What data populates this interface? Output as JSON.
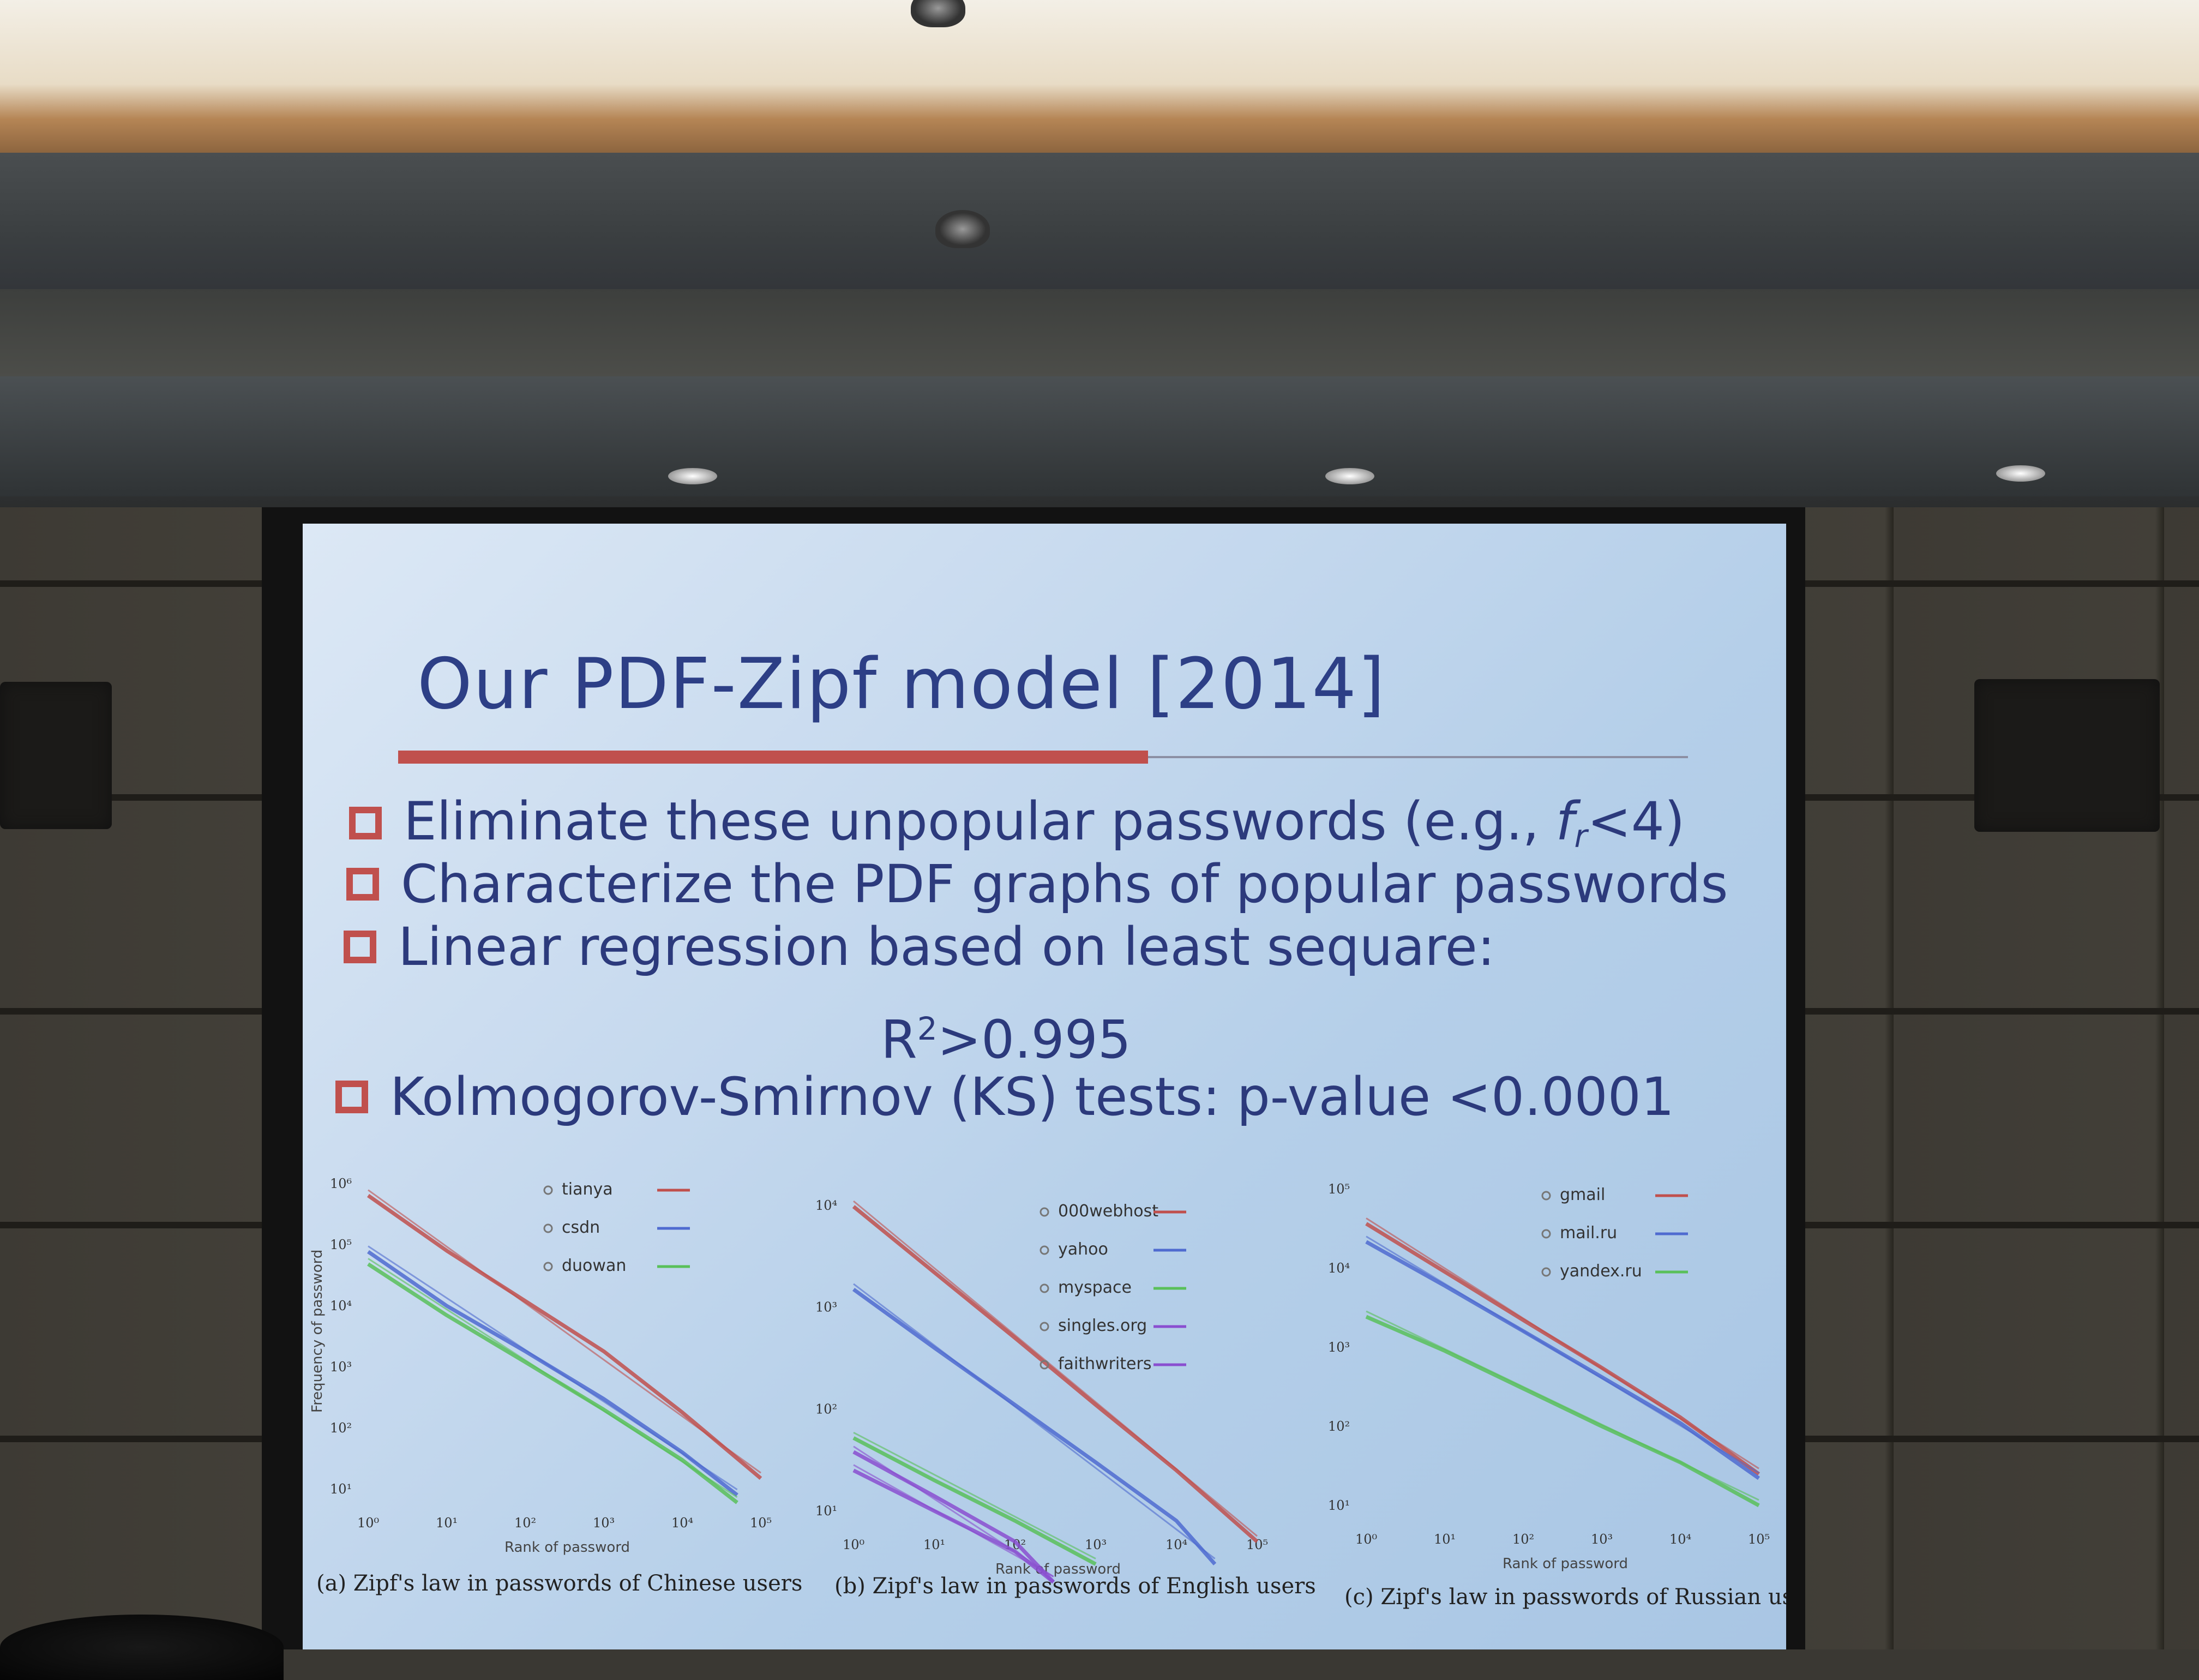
{
  "slide": {
    "title": "Our PDF-Zipf model [2014]",
    "bullets": [
      {
        "pre": "Eliminate these unpopular passwords (e.g., ",
        "f": "f",
        "sub": "r",
        "post": "<4)"
      },
      {
        "text": "Characterize the PDF graphs of popular passwords"
      },
      {
        "text": "Linear regression based on least sequare:"
      },
      {
        "text": "Kolmogorov-Smirnov (KS) tests:  p-value <0.0001"
      }
    ],
    "formula": {
      "base": "R",
      "sup": "2",
      "rest": ">0.995"
    }
  },
  "colors": {
    "slide_title": "#2d3f86",
    "bullet_box": "#c0504d",
    "accent_rule": "#c0504d"
  },
  "chart_data": [
    {
      "type": "line",
      "xscale": "log",
      "yscale": "log",
      "title": "",
      "xlabel": "Rank of password",
      "ylabel": "Frequency of password",
      "x_ticks": [
        "10⁰",
        "10¹",
        "10²",
        "10³",
        "10⁴",
        "10⁵"
      ],
      "y_ticks": [
        "10⁶",
        "10⁵",
        "10⁴",
        "10³",
        "10²",
        "10¹"
      ],
      "legend_position": "top-right",
      "series": [
        {
          "name": "tianya",
          "color": "#c0504d",
          "x": [
            1,
            10,
            100,
            1000,
            10000,
            100000
          ],
          "y": [
            640505,
            80000,
            12000,
            1800,
            180,
            15
          ]
        },
        {
          "name": "csdn",
          "color": "#4f6bd0",
          "x": [
            1,
            10,
            100,
            1000,
            10000,
            50000
          ],
          "y": [
            77045,
            10000,
            1800,
            300,
            40,
            8
          ]
        },
        {
          "name": "duowan",
          "color": "#59c05a",
          "x": [
            1,
            10,
            100,
            1000,
            10000,
            50000
          ],
          "y": [
            48346,
            7000,
            1200,
            200,
            30,
            6
          ]
        }
      ],
      "caption": "(a) Zipf's law in passwords of Chinese users"
    },
    {
      "type": "line",
      "xscale": "log",
      "yscale": "log",
      "title": "",
      "xlabel": "Rank of password",
      "ylabel": "",
      "x_ticks": [
        "10⁰",
        "10¹",
        "10²",
        "10³",
        "10⁴",
        "10⁵"
      ],
      "y_ticks": [
        "10⁴",
        "10³",
        "10²",
        "10¹"
      ],
      "legend_position": "top-right",
      "series": [
        {
          "name": "000webhost",
          "color": "#c0504d",
          "x": [
            1,
            10,
            100,
            1000,
            10000,
            100000
          ],
          "y": [
            9759,
            2200,
            500,
            110,
            25,
            5
          ]
        },
        {
          "name": "yahoo",
          "color": "#4f6bd0",
          "x": [
            1,
            10,
            100,
            1000,
            10000,
            30000
          ],
          "y": [
            1500,
            400,
            110,
            30,
            8,
            3
          ]
        },
        {
          "name": "myspace",
          "color": "#59c05a",
          "x": [
            1,
            10,
            100,
            1000
          ],
          "y": [
            52,
            20,
            8,
            3
          ]
        },
        {
          "name": "singles.org",
          "color": "#8a4fd0",
          "x": [
            1,
            10,
            100,
            300
          ],
          "y": [
            25,
            10,
            4,
            2
          ]
        },
        {
          "name": "faithwriters",
          "color": "#8a4fd0",
          "x": [
            1,
            10,
            100,
            300
          ],
          "y": [
            38,
            14,
            5,
            2
          ]
        }
      ],
      "caption": "(b) Zipf's law in passwords of English users"
    },
    {
      "type": "line",
      "xscale": "log",
      "yscale": "log",
      "title": "",
      "xlabel": "Rank of password",
      "ylabel": "",
      "x_ticks": [
        "10⁰",
        "10¹",
        "10²",
        "10³",
        "10⁴",
        "10⁵"
      ],
      "y_ticks": [
        "10⁵",
        "10⁴",
        "10³",
        "10²",
        "10¹"
      ],
      "legend_position": "top-right",
      "series": [
        {
          "name": "gmail",
          "color": "#c0504d",
          "x": [
            1,
            10,
            100,
            1000,
            10000,
            100000
          ],
          "y": [
            36545,
            9000,
            2200,
            550,
            130,
            25
          ]
        },
        {
          "name": "mail.ru",
          "color": "#4f6bd0",
          "x": [
            1,
            10,
            100,
            1000,
            10000,
            100000
          ],
          "y": [
            21520,
            6000,
            1600,
            420,
            110,
            22
          ]
        },
        {
          "name": "yandex.ru",
          "color": "#59c05a",
          "x": [
            1,
            10,
            100,
            1000,
            10000,
            100000
          ],
          "y": [
            2433,
            900,
            300,
            100,
            35,
            10
          ]
        }
      ],
      "caption": "(c) Zipf's law in passwords of Russian users"
    }
  ]
}
